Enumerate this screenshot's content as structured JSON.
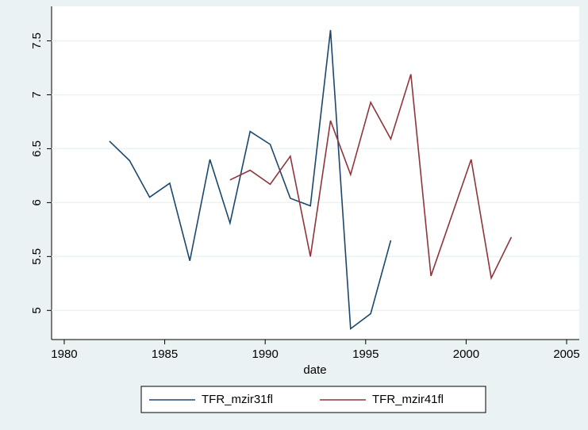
{
  "chart_data": {
    "type": "line",
    "x_label": "date",
    "xlim": [
      1979.37,
      2005.63
    ],
    "xticks": [
      1980,
      1985,
      1990,
      1995,
      2000,
      2005
    ],
    "ylim": [
      4.73,
      7.82
    ],
    "yticks": [
      5,
      5.5,
      6,
      6.5,
      7,
      7.5
    ],
    "grid": true,
    "legend": "bottom",
    "series": [
      {
        "name": "TFR_mzir31fl",
        "color": "#1a476f",
        "x": [
          1982.25,
          1983.25,
          1984.25,
          1985.25,
          1986.25,
          1987.25,
          1988.25,
          1989.25,
          1990.25,
          1991.25,
          1992.25,
          1993.25,
          1994.25,
          1995.25,
          1996.25
        ],
        "values": [
          6.57,
          6.39,
          6.05,
          6.18,
          5.46,
          6.4,
          5.81,
          6.66,
          6.54,
          6.04,
          5.97,
          7.6,
          4.83,
          4.97,
          5.65
        ]
      },
      {
        "name": "TFR_mzir41fl",
        "color": "#90353b",
        "x": [
          1988.25,
          1989.25,
          1990.25,
          1991.25,
          1992.25,
          1993.25,
          1994.25,
          1995.25,
          1996.25,
          1997.25,
          1998.25,
          2000.25,
          2001.25,
          2002.25
        ],
        "values": [
          6.21,
          6.3,
          6.17,
          6.43,
          5.5,
          6.76,
          6.26,
          6.93,
          6.59,
          7.19,
          5.32,
          6.4,
          5.3,
          5.68
        ]
      }
    ]
  }
}
